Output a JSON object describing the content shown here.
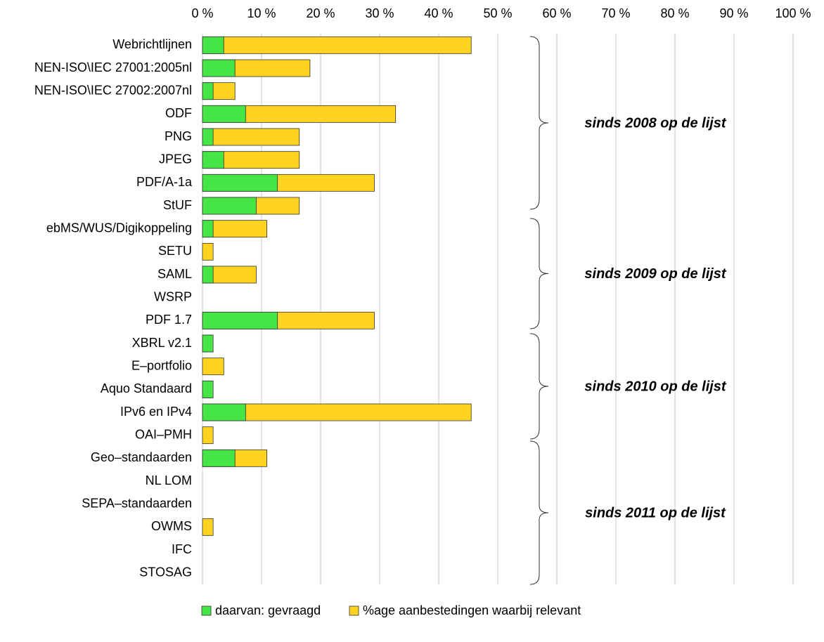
{
  "chart_data": {
    "type": "bar",
    "orientation": "horizontal",
    "overlap": true,
    "categories": [
      "Webrichtlijnen",
      "NEN-ISO\\IEC 27001:2005nl",
      "NEN-ISO\\IEC 27002:2007nl",
      "ODF",
      "PNG",
      "JPEG",
      "PDF/A-1a",
      "StUF",
      "ebMS/WUS/Digikoppeling",
      "SETU",
      "SAML",
      "WSRP",
      "PDF 1.7",
      "XBRL v2.1",
      "E–portfolio",
      "Aquo Standaard",
      "IPv6 en IPv4",
      "OAI–PMH",
      "Geo–standaarden",
      "NL LOM",
      "SEPA–standaarden",
      "OWMS",
      "IFC",
      "STOSAG"
    ],
    "series": [
      {
        "name": "%age aanbestedingen waarbij relevant",
        "color": "#ffd320",
        "values": [
          45.5,
          18.2,
          5.5,
          32.7,
          16.4,
          16.4,
          29.1,
          16.4,
          10.9,
          1.8,
          9.1,
          0,
          29.1,
          1.8,
          3.6,
          1.8,
          45.5,
          1.8,
          10.9,
          0,
          0,
          1.8,
          0,
          0
        ]
      },
      {
        "name": "daarvan: gevraagd",
        "color": "#44e544",
        "values": [
          3.6,
          5.5,
          1.8,
          7.3,
          1.8,
          3.6,
          12.7,
          9.1,
          1.8,
          0,
          1.8,
          0,
          12.7,
          1.8,
          0,
          1.8,
          7.3,
          0,
          5.5,
          0,
          0,
          0,
          0,
          0
        ]
      }
    ],
    "xlim": [
      0,
      100
    ],
    "xticks": [
      {
        "value": 0,
        "label": "0 %"
      },
      {
        "value": 10,
        "label": "10 %"
      },
      {
        "value": 20,
        "label": "20 %"
      },
      {
        "value": 30,
        "label": "30 %"
      },
      {
        "value": 40,
        "label": "40 %"
      },
      {
        "value": 50,
        "label": "50 %"
      },
      {
        "value": 60,
        "label": "60 %"
      },
      {
        "value": 70,
        "label": "70 %"
      },
      {
        "value": 80,
        "label": "80 %"
      },
      {
        "value": 90,
        "label": "90 %"
      },
      {
        "value": 100,
        "label": "100 %"
      }
    ],
    "grid": true,
    "legend": "bottom",
    "annotations": [
      "sinds 2008 op de lijst",
      "sinds 2009 op de lijst",
      "sinds 2010 op de lijst",
      "sinds 2011 op de lijst"
    ]
  }
}
